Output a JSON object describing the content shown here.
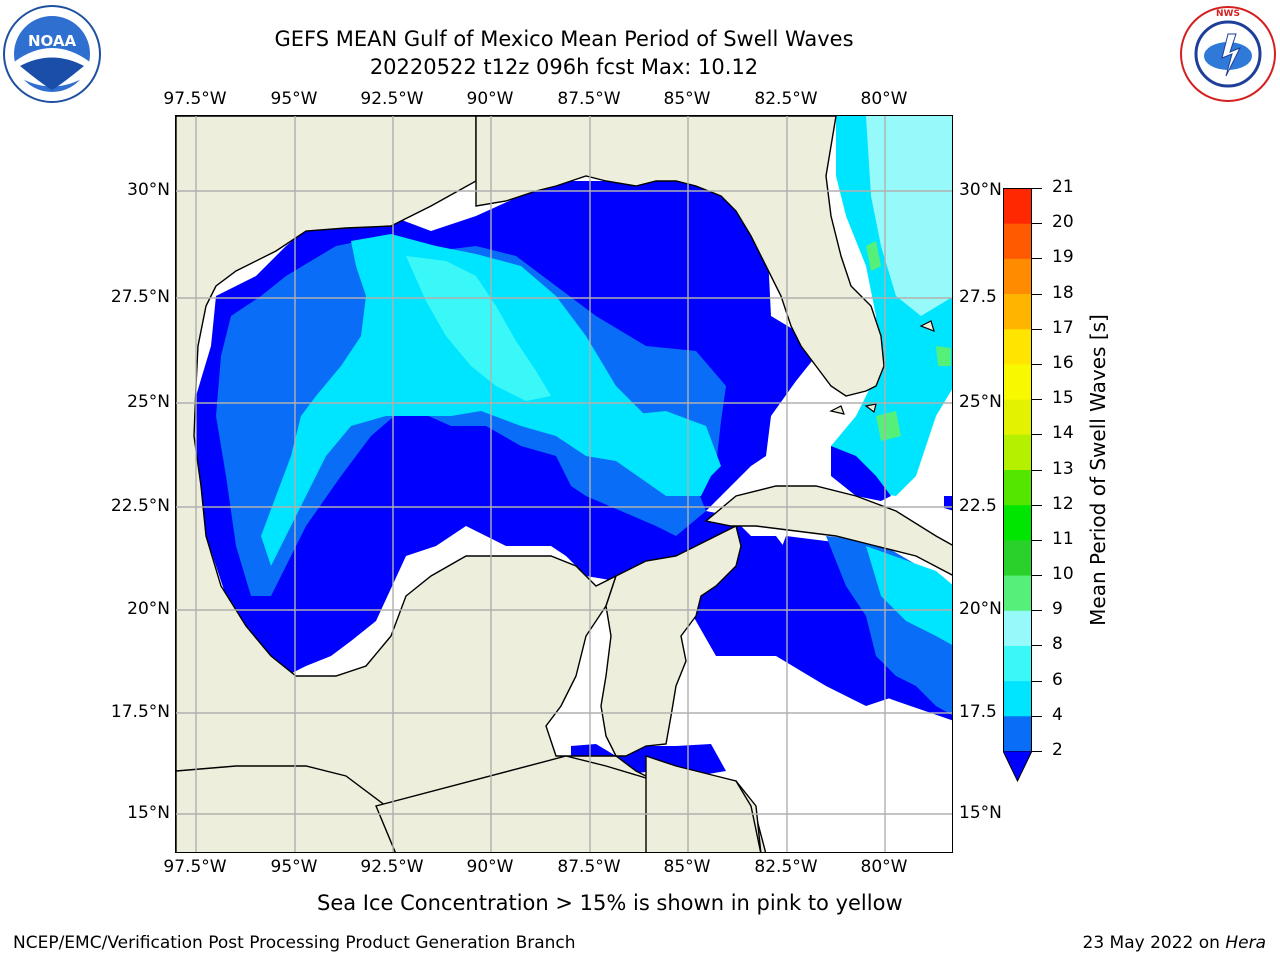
{
  "title_line1": "GEFS MEAN Gulf of Mexico Mean Period of Swell Waves",
  "title_line2": "20220522 t12z 096h fcst   Max: 10.12",
  "lon_labels": [
    "97.5°W",
    "95°W",
    "92.5°W",
    "90°W",
    "87.5°W",
    "85°W",
    "82.5°W",
    "80°W"
  ],
  "lat_labels_left": [
    "30°N",
    "27.5°N",
    "25°N",
    "22.5°N",
    "20°N",
    "17.5°N",
    "15°N"
  ],
  "lat_labels_right": [
    "30°N",
    "27.5",
    "25°N",
    "22.5",
    "20°N",
    "17.5",
    "15°N"
  ],
  "colorbar": {
    "label": "Mean Period of Swell Waves [s]",
    "ticks": [
      "2",
      "4",
      "6",
      "8",
      "9",
      "10",
      "11",
      "12",
      "13",
      "14",
      "15",
      "16",
      "17",
      "18",
      "19",
      "20",
      "21"
    ],
    "colors": [
      "#0a6df8",
      "#00e5ff",
      "#3bf8f8",
      "#96fafa",
      "#55f07a",
      "#2ad12a",
      "#00e600",
      "#55e600",
      "#b4f000",
      "#e2f200",
      "#f8f800",
      "#ffe400",
      "#ffb400",
      "#ff8c00",
      "#ff5a00",
      "#ff2800"
    ],
    "under_color": "#0000ff"
  },
  "map_colors": {
    "land": "#eeeedc",
    "ocean_nodata": "#ffffff",
    "p_lt2": "#0000ff",
    "p_2_4": "#0a6df8",
    "p_4_6": "#00e5ff",
    "p_6_8": "#3bf8f8",
    "p_8_9": "#96fafa",
    "p_9_10": "#55f07a",
    "grid": "#b0b0b0"
  },
  "ice_note": "Sea Ice Concentration > 15% is shown in pink to yellow",
  "footer_left": "NCEP/EMC/Verification Post Processing Product Generation Branch",
  "footer_right_date": "23 May 2022 on ",
  "footer_right_host": "Hera",
  "logos": {
    "left": {
      "icon": "noaa-logo",
      "text": "NOAA"
    },
    "right": {
      "icon": "nws-logo",
      "text": "NATIONAL WEATHER SERVICE"
    }
  }
}
